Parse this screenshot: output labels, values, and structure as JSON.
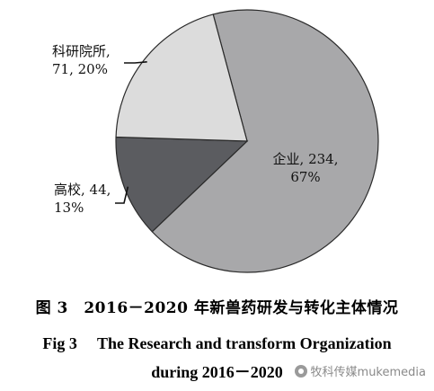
{
  "chart_data": {
    "type": "pie",
    "slices": [
      {
        "name": "企业",
        "value": 234,
        "percent": 67,
        "color": "#a8a8aa",
        "label_lines": [
          "企业, 234,",
          "67%"
        ]
      },
      {
        "name": "高校",
        "value": 44,
        "percent": 13,
        "color": "#5b5c60",
        "label_lines": [
          "高校, 44,",
          "13%"
        ]
      },
      {
        "name": "科研院所",
        "value": 71,
        "percent": 20,
        "color": "#dcdcdc",
        "label_lines": [
          "科研院所,",
          "71, 20%"
        ]
      }
    ],
    "stroke_color": "#2a2a2a"
  },
  "caption": {
    "cn": "图 3　2016－2020 年新兽药研发与转化主体情况",
    "en_line1": "Fig 3　 The Research and transform Organization",
    "en_line2": "during 2016－2020"
  },
  "watermark": {
    "text": "牧科传媒mukemedia",
    "icon": "wechat-icon"
  }
}
